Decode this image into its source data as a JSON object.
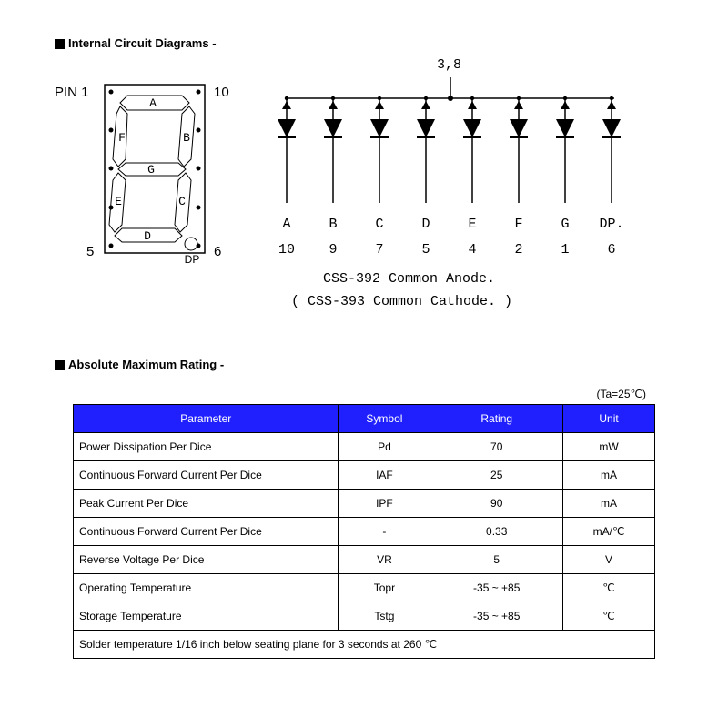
{
  "sections": {
    "circuit_header": "Internal Circuit Diagrams -",
    "rating_header": "Absolute Maximum Rating -"
  },
  "led_diagram": {
    "pin1_label": "PIN 1",
    "pin10_label": "10",
    "pin5_label": "5",
    "pin6_label": "6",
    "dp_label": "DP",
    "segments": {
      "A": "A",
      "B": "B",
      "C": "C",
      "D": "D",
      "E": "E",
      "F": "F",
      "G": "G"
    }
  },
  "circuit_diagram": {
    "common_label": "3,8",
    "seg_labels": [
      "A",
      "B",
      "C",
      "D",
      "E",
      "F",
      "G",
      "DP."
    ],
    "seg_pins": [
      "10",
      "9",
      "7",
      "5",
      "4",
      "2",
      "1",
      "6"
    ],
    "line1": "CSS-392 Common Anode.",
    "line2": "( CSS-393 Common Cathode. )"
  },
  "rating_table": {
    "ta_note": "(Ta=25℃)",
    "headers": [
      "Parameter",
      "Symbol",
      "Rating",
      "Unit"
    ],
    "col_widths": [
      "260px",
      "90px",
      "130px",
      "90px"
    ],
    "header_bg": "#2020ff",
    "rows": [
      {
        "param": "Power Dissipation Per Dice",
        "symbol": "Pd",
        "rating": "70",
        "unit": "mW"
      },
      {
        "param": "Continuous Forward Current Per Dice",
        "symbol": "IAF",
        "rating": "25",
        "unit": "mA"
      },
      {
        "param": "Peak Current Per Dice",
        "symbol": "IPF",
        "rating": "90",
        "unit": "mA"
      },
      {
        "param": "Continuous Forward Current Per Dice",
        "symbol": "-",
        "rating": "0.33",
        "unit": "mA/℃"
      },
      {
        "param": "Reverse Voltage Per Dice",
        "symbol": "VR",
        "rating": "5",
        "unit": "V"
      },
      {
        "param": "Operating Temperature",
        "symbol": "Topr",
        "rating": "-35 ~ +85",
        "unit": "℃"
      },
      {
        "param": "Storage Temperature",
        "symbol": "Tstg",
        "rating": "-35 ~ +85",
        "unit": "℃"
      }
    ],
    "footnote": "Solder temperature 1/16 inch below seating plane for 3 seconds at 260 ℃"
  }
}
